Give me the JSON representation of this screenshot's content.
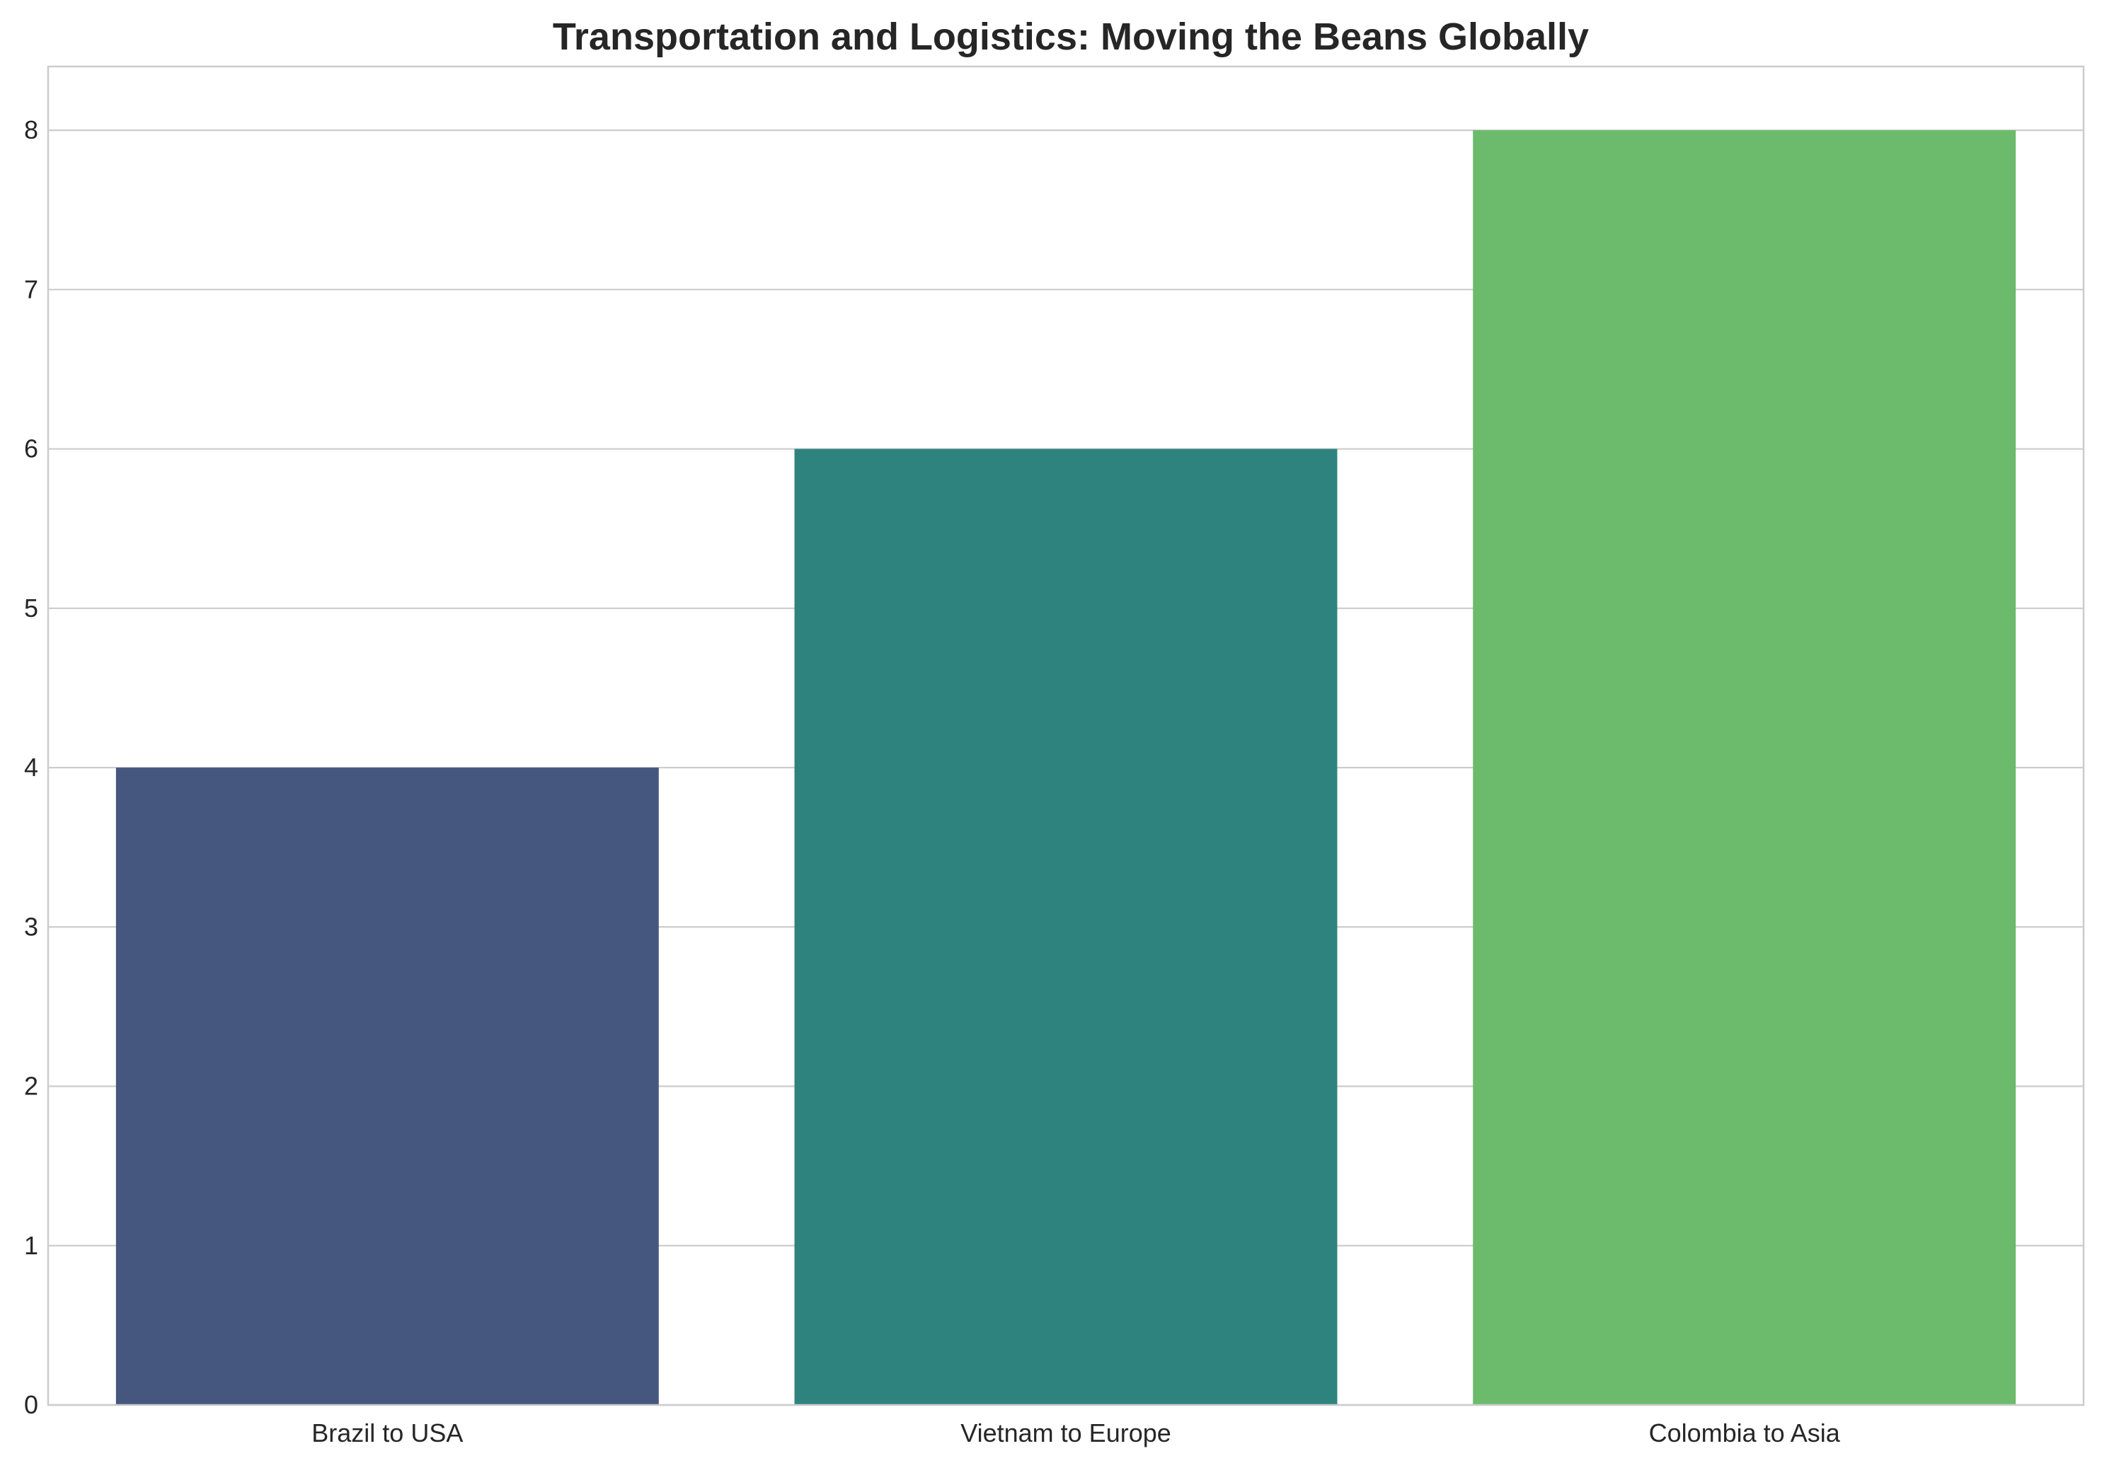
{
  "chart_data": {
    "type": "bar",
    "title": "Transportation and Logistics: Moving the Beans Globally",
    "xlabel": "",
    "ylabel": "",
    "categories": [
      "Brazil to USA",
      "Vietnam to Europe",
      "Colombia to Asia"
    ],
    "values": [
      4,
      6,
      8
    ],
    "colors": [
      "#46577f",
      "#2f837e",
      "#6cbb6d"
    ],
    "ylim": [
      0,
      8.4
    ],
    "yticks": [
      0,
      1,
      2,
      3,
      4,
      5,
      6,
      7,
      8
    ],
    "grid": true,
    "gridColor": "#cccccc",
    "spineColor": "#cccccc",
    "legend": "none"
  }
}
